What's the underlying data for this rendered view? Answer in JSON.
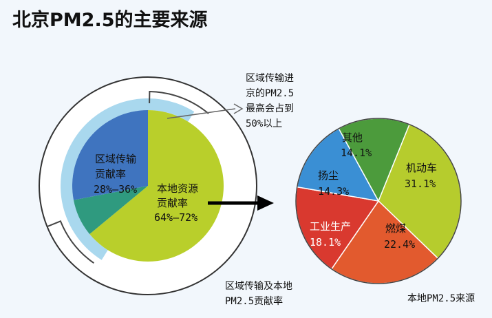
{
  "title": "北京PM2.5的主要来源",
  "callout": {
    "lines": [
      "区域传输进",
      "京的PM2.5",
      "最高会占到",
      "50%以上"
    ]
  },
  "chart_data": [
    {
      "type": "pie",
      "title": "",
      "caption": [
        "区域传输及本地",
        "PM2.5贡献率"
      ],
      "slices": [
        {
          "name_lines": [
            "区域传输",
            "贡献率"
          ],
          "value_text": "28%—36%",
          "value": 28,
          "color": "#3f74bf"
        },
        {
          "name_lines": [
            "本地资源",
            "贡献率"
          ],
          "value_text": "64%—72%",
          "value": 64,
          "color": "#b9cf2b"
        },
        {
          "name_lines": [],
          "value_text": "",
          "value": 8,
          "color": "#2f9a7f"
        }
      ],
      "outer_ring": {
        "value": 50,
        "color": "#a9d8ee"
      }
    },
    {
      "type": "pie",
      "title": "",
      "caption": [
        "本地PM2.5来源"
      ],
      "slices": [
        {
          "name": "机动车",
          "value_text": "31.1%",
          "value": 31.1,
          "color": "#b6cc2d"
        },
        {
          "name": "燃煤",
          "value_text": "22.4%",
          "value": 22.4,
          "color": "#e25a2e"
        },
        {
          "name": "工业生产",
          "value_text": "18.1%",
          "value": 18.1,
          "color": "#d9392f"
        },
        {
          "name": "扬尘",
          "value_text": "14.3%",
          "value": 14.3,
          "color": "#3a8fd4"
        },
        {
          "name": "其他",
          "value_text": "14.1%",
          "value": 14.1,
          "color": "#4c9b3c"
        }
      ]
    }
  ]
}
